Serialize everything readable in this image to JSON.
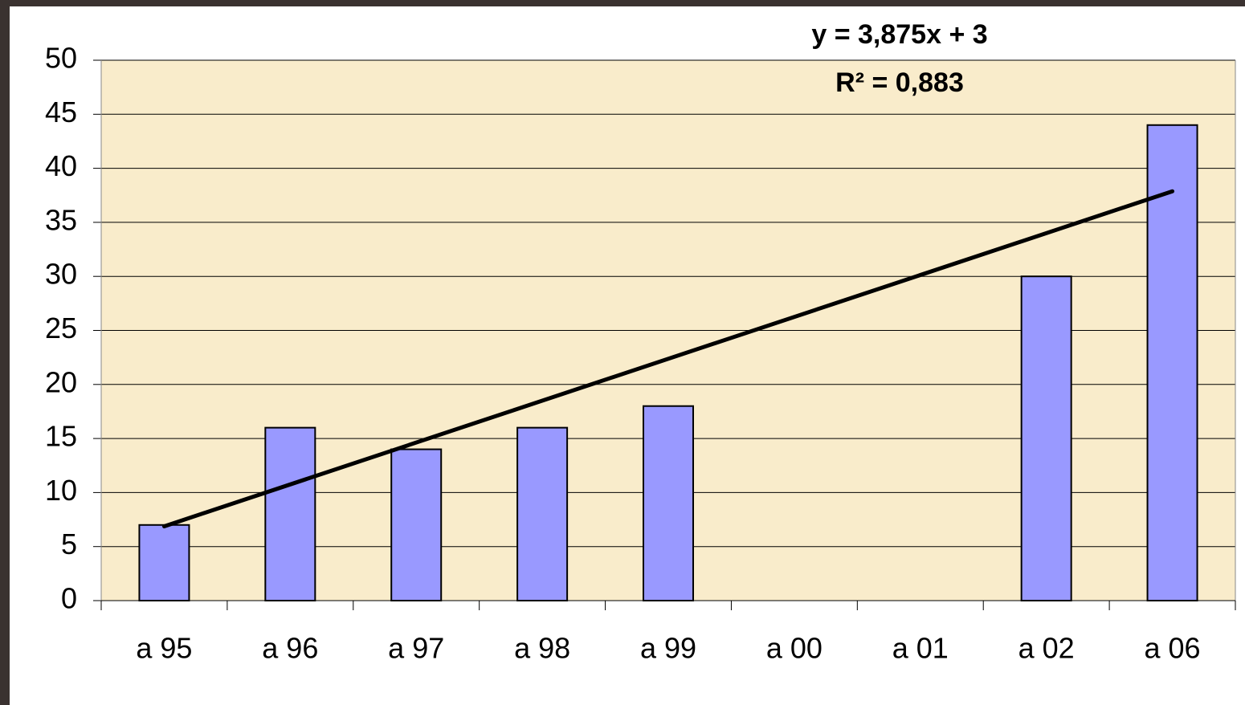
{
  "chart_data": {
    "type": "bar",
    "categories": [
      "a 95",
      "a 96",
      "a 97",
      "a 98",
      "a 99",
      "a 00",
      "a 01",
      "a 02",
      "a 06"
    ],
    "values": [
      7,
      16,
      14,
      16,
      18,
      null,
      null,
      30,
      44
    ],
    "color": "#9999ff",
    "ylim": [
      0,
      50
    ],
    "yticks": [
      0,
      5,
      10,
      15,
      20,
      25,
      30,
      35,
      40,
      45,
      50
    ],
    "grid": true,
    "trendline": {
      "label": "y = 3,875x + 3",
      "slope": 3.875,
      "intercept": 3,
      "r2_label": "R² = 0,883",
      "r2": 0.883,
      "color": "#000000"
    }
  }
}
